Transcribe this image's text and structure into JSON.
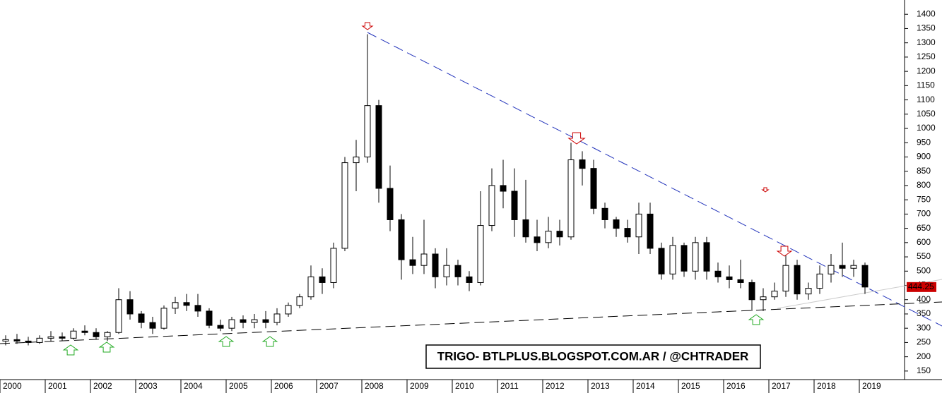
{
  "chart_data": {
    "type": "candlestick",
    "title": "TRIGO- BTLPLUS.BLOGSPOT.COM.AR / @CHTRADER",
    "x": [
      2000.125,
      2000.375,
      2000.625,
      2000.875,
      2001.125,
      2001.375,
      2001.625,
      2001.875,
      2002.125,
      2002.375,
      2002.625,
      2002.875,
      2003.125,
      2003.375,
      2003.625,
      2003.875,
      2004.125,
      2004.375,
      2004.625,
      2004.875,
      2005.125,
      2005.375,
      2005.625,
      2005.875,
      2006.125,
      2006.375,
      2006.625,
      2006.875,
      2007.125,
      2007.375,
      2007.625,
      2007.875,
      2008.125,
      2008.375,
      2008.625,
      2008.875,
      2009.125,
      2009.375,
      2009.625,
      2009.875,
      2010.125,
      2010.375,
      2010.625,
      2010.875,
      2011.125,
      2011.375,
      2011.625,
      2011.875,
      2012.125,
      2012.375,
      2012.625,
      2012.875,
      2013.125,
      2013.375,
      2013.625,
      2013.875,
      2014.125,
      2014.375,
      2014.625,
      2014.875,
      2015.125,
      2015.375,
      2015.625,
      2015.875,
      2016.125,
      2016.375,
      2016.625,
      2016.875,
      2017.125,
      2017.375,
      2017.625,
      2017.875,
      2018.125,
      2018.375,
      2018.625,
      2018.875,
      2019.125
    ],
    "open": [
      255,
      260,
      255,
      250,
      265,
      270,
      265,
      290,
      285,
      270,
      285,
      400,
      350,
      320,
      300,
      370,
      390,
      380,
      360,
      310,
      300,
      330,
      320,
      330,
      320,
      350,
      380,
      410,
      480,
      460,
      580,
      880,
      900,
      1080,
      790,
      680,
      540,
      520,
      560,
      480,
      520,
      480,
      460,
      660,
      800,
      780,
      680,
      620,
      600,
      640,
      620,
      890,
      860,
      720,
      680,
      650,
      620,
      700,
      580,
      490,
      590,
      500,
      600,
      500,
      480,
      470,
      460,
      400,
      410,
      430,
      520,
      420,
      440,
      490,
      520,
      510,
      520
    ],
    "high": [
      275,
      280,
      270,
      275,
      290,
      285,
      300,
      310,
      300,
      290,
      440,
      430,
      360,
      340,
      380,
      410,
      420,
      420,
      370,
      330,
      340,
      345,
      350,
      360,
      370,
      390,
      420,
      520,
      510,
      600,
      900,
      960,
      1330,
      1100,
      870,
      700,
      620,
      680,
      580,
      580,
      540,
      500,
      780,
      860,
      890,
      860,
      820,
      680,
      690,
      680,
      950,
      920,
      890,
      740,
      690,
      680,
      740,
      740,
      600,
      620,
      600,
      620,
      620,
      530,
      520,
      540,
      470,
      440,
      460,
      560,
      540,
      460,
      520,
      560,
      600,
      540,
      530
    ],
    "low": [
      240,
      245,
      240,
      245,
      255,
      255,
      260,
      275,
      260,
      255,
      280,
      330,
      300,
      280,
      295,
      350,
      360,
      340,
      300,
      290,
      290,
      300,
      300,
      300,
      310,
      340,
      370,
      400,
      420,
      440,
      570,
      780,
      880,
      740,
      640,
      470,
      490,
      490,
      440,
      450,
      450,
      430,
      450,
      640,
      720,
      620,
      600,
      570,
      580,
      590,
      610,
      800,
      700,
      650,
      620,
      600,
      560,
      560,
      470,
      470,
      480,
      470,
      470,
      460,
      440,
      440,
      360,
      360,
      400,
      410,
      400,
      400,
      420,
      460,
      480,
      480,
      420
    ],
    "close": [
      260,
      255,
      250,
      265,
      270,
      265,
      290,
      285,
      270,
      285,
      400,
      350,
      320,
      300,
      370,
      390,
      380,
      360,
      310,
      300,
      330,
      320,
      330,
      320,
      350,
      380,
      410,
      480,
      460,
      580,
      880,
      900,
      1080,
      790,
      680,
      540,
      520,
      560,
      480,
      520,
      480,
      460,
      660,
      800,
      780,
      680,
      620,
      600,
      640,
      620,
      890,
      860,
      720,
      680,
      650,
      620,
      700,
      580,
      490,
      590,
      500,
      600,
      500,
      480,
      470,
      460,
      400,
      410,
      430,
      520,
      420,
      440,
      490,
      520,
      510,
      520,
      444.25
    ],
    "xlim": [
      2000,
      2020
    ],
    "xticks": [
      2000,
      2001,
      2002,
      2003,
      2004,
      2005,
      2006,
      2007,
      2008,
      2009,
      2010,
      2011,
      2012,
      2013,
      2014,
      2015,
      2016,
      2017,
      2018,
      2019
    ],
    "ylim": [
      120,
      1450
    ],
    "yticks": [
      150,
      200,
      250,
      300,
      350,
      400,
      450,
      500,
      550,
      600,
      650,
      700,
      750,
      800,
      850,
      900,
      950,
      1000,
      1050,
      1100,
      1150,
      1200,
      1250,
      1300,
      1350,
      1400
    ]
  }
}
